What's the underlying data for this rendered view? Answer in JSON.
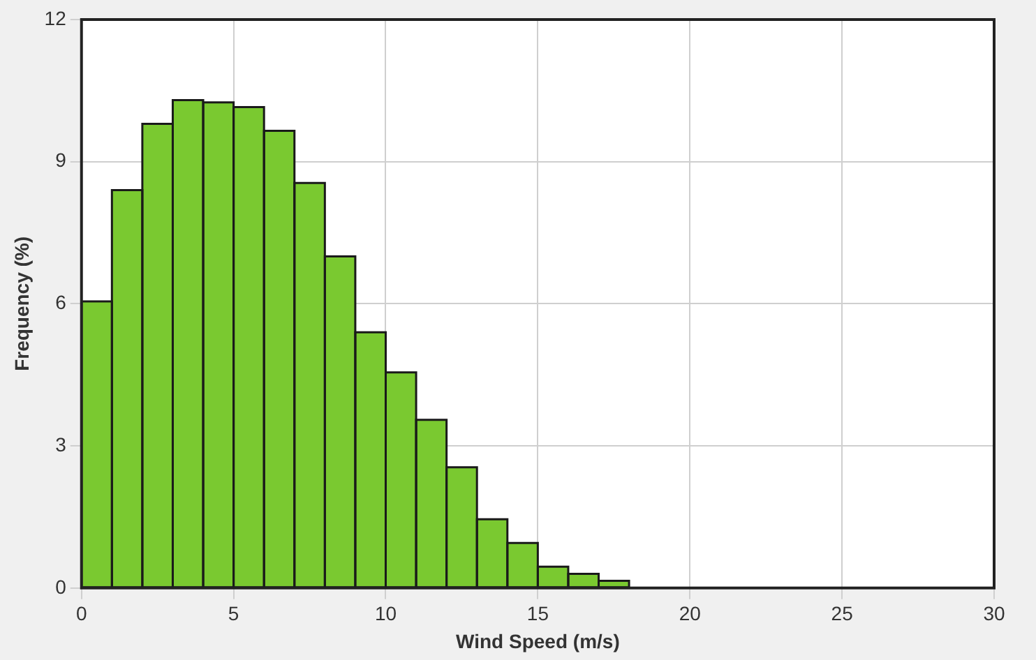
{
  "chart_data": {
    "type": "histogram",
    "xlabel": "Wind Speed (m/s)",
    "ylabel": "Frequency (%)",
    "bins": [
      0,
      1,
      2,
      3,
      4,
      5,
      6,
      7,
      8,
      9,
      10,
      11,
      12,
      13,
      14,
      15,
      16,
      17,
      18
    ],
    "values": [
      6.05,
      8.4,
      9.8,
      10.3,
      10.25,
      10.15,
      9.65,
      8.55,
      7.0,
      5.4,
      4.55,
      3.55,
      2.55,
      1.45,
      0.95,
      0.45,
      0.3,
      0.15
    ],
    "color": "#7ac930",
    "xlim": [
      0,
      30
    ],
    "xticks": [
      0,
      5,
      10,
      15,
      20,
      25,
      30
    ],
    "ylim": [
      0,
      12
    ],
    "yticks": [
      0,
      3,
      6,
      9,
      12
    ],
    "grid": true,
    "legend": false
  }
}
